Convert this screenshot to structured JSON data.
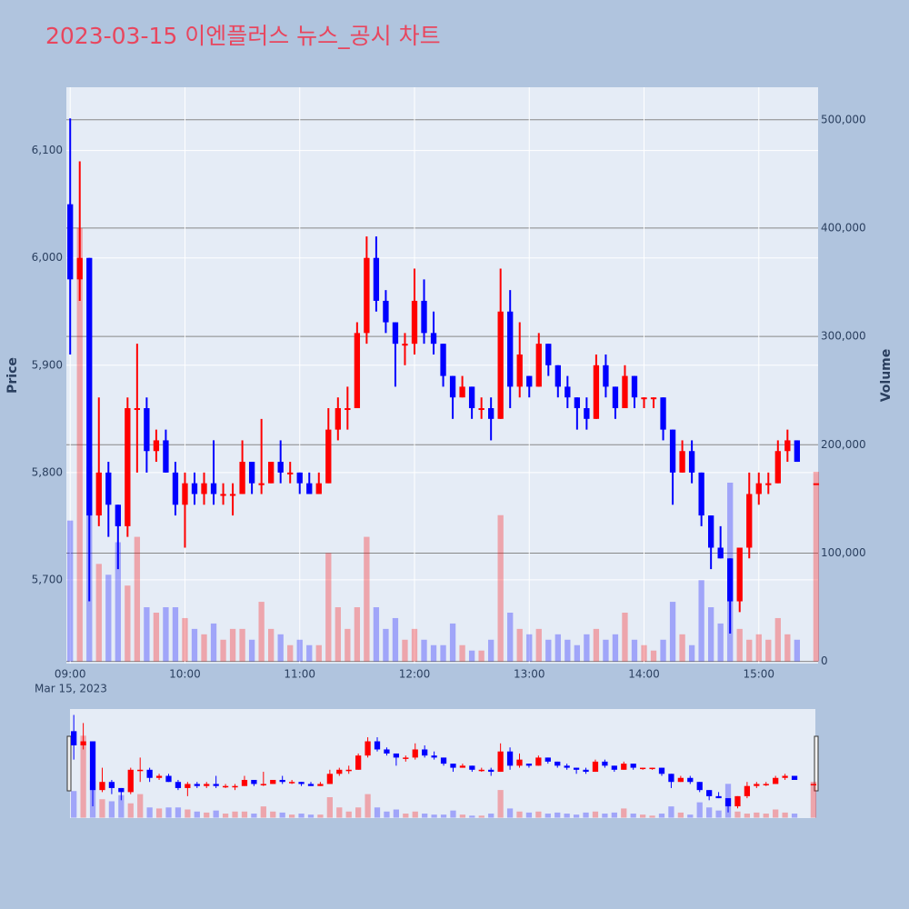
{
  "chart_data": {
    "type": "candlestick",
    "title": "2023-03-15 이엔플러스 뉴스_공시 차트",
    "y_label": "Price",
    "y2_label": "Volume",
    "date_label": "Mar 15, 2023",
    "increasing_color": "#ff0000",
    "decreasing_color": "#0000ff",
    "x": [
      "09:00",
      "09:05",
      "09:10",
      "09:15",
      "09:20",
      "09:25",
      "09:30",
      "09:35",
      "09:40",
      "09:45",
      "09:50",
      "09:55",
      "10:00",
      "10:05",
      "10:10",
      "10:15",
      "10:20",
      "10:25",
      "10:30",
      "10:35",
      "10:40",
      "10:45",
      "10:50",
      "10:55",
      "11:00",
      "11:05",
      "11:10",
      "11:15",
      "11:20",
      "11:25",
      "11:30",
      "11:35",
      "11:40",
      "11:45",
      "11:50",
      "11:55",
      "12:00",
      "12:05",
      "12:10",
      "12:15",
      "12:20",
      "12:25",
      "12:30",
      "12:35",
      "12:40",
      "12:45",
      "12:50",
      "12:55",
      "13:00",
      "13:05",
      "13:10",
      "13:15",
      "13:20",
      "13:25",
      "13:30",
      "13:35",
      "13:40",
      "13:45",
      "13:50",
      "13:55",
      "14:00",
      "14:05",
      "14:10",
      "14:15",
      "14:20",
      "14:25",
      "14:30",
      "14:35",
      "14:40",
      "14:45",
      "14:50",
      "14:55",
      "15:00",
      "15:05",
      "15:10",
      "15:15",
      "15:20",
      "15:30"
    ],
    "open": [
      6050,
      5980,
      6000,
      5760,
      5800,
      5770,
      5750,
      5860,
      5860,
      5820,
      5830,
      5800,
      5770,
      5790,
      5780,
      5790,
      5780,
      5780,
      5780,
      5810,
      5790,
      5790,
      5810,
      5800,
      5800,
      5790,
      5780,
      5790,
      5840,
      5860,
      5860,
      5930,
      6000,
      5960,
      5940,
      5920,
      5920,
      5960,
      5930,
      5920,
      5890,
      5870,
      5880,
      5860,
      5860,
      5850,
      5950,
      5880,
      5890,
      5880,
      5920,
      5900,
      5880,
      5870,
      5860,
      5850,
      5900,
      5880,
      5860,
      5890,
      5870,
      5870,
      5870,
      5840,
      5800,
      5820,
      5800,
      5760,
      5730,
      5720,
      5680,
      5730,
      5780,
      5790,
      5790,
      5820,
      5830,
      5790
    ],
    "high": [
      6130,
      6090,
      6000,
      5870,
      5810,
      5770,
      5870,
      5920,
      5870,
      5840,
      5840,
      5810,
      5800,
      5800,
      5800,
      5830,
      5790,
      5790,
      5830,
      5810,
      5850,
      5810,
      5830,
      5810,
      5800,
      5800,
      5800,
      5860,
      5870,
      5880,
      5940,
      6020,
      6020,
      5970,
      5940,
      5930,
      5990,
      5980,
      5950,
      5920,
      5890,
      5890,
      5880,
      5870,
      5870,
      5990,
      5970,
      5940,
      5890,
      5930,
      5920,
      5900,
      5890,
      5870,
      5870,
      5910,
      5910,
      5880,
      5900,
      5890,
      5870,
      5870,
      5870,
      5840,
      5830,
      5830,
      5800,
      5760,
      5750,
      5720,
      5730,
      5800,
      5800,
      5800,
      5830,
      5840,
      5830,
      5790
    ],
    "low": [
      5910,
      5960,
      5680,
      5750,
      5740,
      5710,
      5740,
      5800,
      5800,
      5810,
      5800,
      5760,
      5730,
      5770,
      5770,
      5770,
      5770,
      5760,
      5780,
      5780,
      5780,
      5790,
      5790,
      5790,
      5780,
      5780,
      5780,
      5790,
      5830,
      5840,
      5860,
      5920,
      5950,
      5930,
      5880,
      5900,
      5910,
      5920,
      5910,
      5880,
      5850,
      5870,
      5850,
      5850,
      5830,
      5850,
      5860,
      5870,
      5870,
      5880,
      5890,
      5870,
      5860,
      5840,
      5840,
      5850,
      5870,
      5850,
      5860,
      5860,
      5860,
      5860,
      5830,
      5770,
      5800,
      5790,
      5750,
      5710,
      5720,
      5650,
      5670,
      5720,
      5770,
      5780,
      5790,
      5810,
      5810,
      5790
    ],
    "close": [
      5980,
      6000,
      5760,
      5800,
      5770,
      5750,
      5860,
      5860,
      5820,
      5830,
      5800,
      5770,
      5790,
      5780,
      5790,
      5780,
      5780,
      5780,
      5810,
      5790,
      5790,
      5810,
      5800,
      5800,
      5790,
      5780,
      5790,
      5840,
      5860,
      5860,
      5930,
      6000,
      5960,
      5940,
      5920,
      5920,
      5960,
      5930,
      5920,
      5890,
      5870,
      5880,
      5860,
      5860,
      5850,
      5950,
      5880,
      5910,
      5880,
      5920,
      5900,
      5880,
      5870,
      5860,
      5850,
      5900,
      5880,
      5860,
      5890,
      5870,
      5870,
      5870,
      5840,
      5800,
      5820,
      5800,
      5760,
      5730,
      5720,
      5680,
      5730,
      5780,
      5790,
      5790,
      5820,
      5830,
      5810,
      5790
    ],
    "volume": [
      130000,
      400000,
      180000,
      90000,
      80000,
      110000,
      70000,
      115000,
      50000,
      45000,
      50000,
      50000,
      40000,
      30000,
      25000,
      35000,
      20000,
      30000,
      30000,
      20000,
      55000,
      30000,
      25000,
      15000,
      20000,
      15000,
      15000,
      100000,
      50000,
      30000,
      50000,
      115000,
      50000,
      30000,
      40000,
      20000,
      30000,
      20000,
      15000,
      15000,
      35000,
      15000,
      10000,
      10000,
      20000,
      135000,
      45000,
      30000,
      25000,
      30000,
      20000,
      25000,
      20000,
      15000,
      25000,
      30000,
      20000,
      25000,
      45000,
      20000,
      15000,
      10000,
      20000,
      55000,
      25000,
      15000,
      75000,
      50000,
      35000,
      165000,
      30000,
      20000,
      25000,
      20000,
      40000,
      25000,
      20000,
      175000
    ],
    "xlim": [
      "08:58",
      "15:31"
    ],
    "xticks": [
      "09:00",
      "10:00",
      "11:00",
      "12:00",
      "13:00",
      "14:00",
      "15:00"
    ],
    "ylim": [
      5622,
      6159
    ],
    "yticks": [
      {
        "value": 5700,
        "label": "5,700"
      },
      {
        "value": 5800,
        "label": "5,800"
      },
      {
        "value": 5900,
        "label": "5,900"
      },
      {
        "value": 6000,
        "label": "6,000"
      },
      {
        "value": 6100,
        "label": "6,100"
      }
    ],
    "y2lim": [
      -2000,
      530000
    ],
    "y2ticks": [
      0,
      {
        "value": 100000,
        "label": "100,000"
      },
      {
        "value": 200000,
        "label": "200,000"
      },
      {
        "value": 300000,
        "label": "300,000"
      },
      {
        "value": 400000,
        "label": "400,000"
      },
      {
        "value": 500000,
        "label": "500,000"
      }
    ],
    "grid": true
  }
}
